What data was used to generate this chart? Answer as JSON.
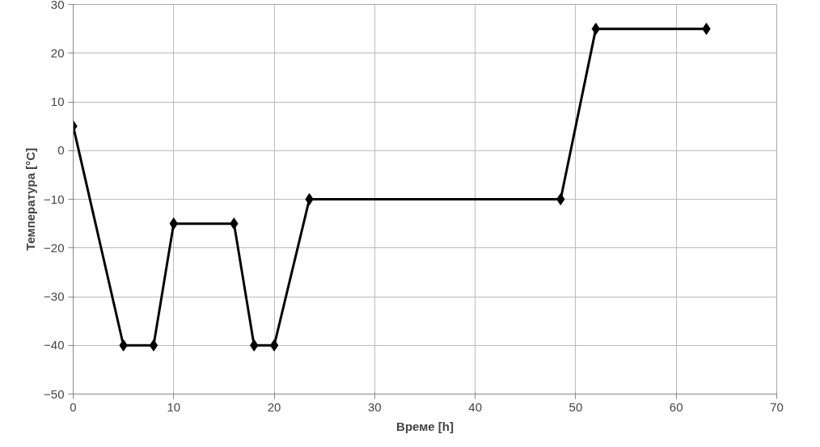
{
  "chart_data": {
    "type": "line",
    "xlabel": "Време [h]",
    "ylabel": "Температура [°C]",
    "x": [
      0,
      5,
      8,
      10,
      16,
      18,
      20,
      23.5,
      48.5,
      52,
      63
    ],
    "series": [
      {
        "color": "#000000",
        "values": [
          5,
          -40,
          -40,
          -15,
          -15,
          -40,
          -40,
          -10,
          -10,
          25,
          25
        ]
      }
    ],
    "xlim": [
      0,
      70
    ],
    "xticks": [
      0,
      10,
      20,
      30,
      40,
      50,
      60,
      70
    ],
    "ylim": [
      -50,
      30
    ],
    "yticks": [
      -50,
      -40,
      -30,
      -20,
      -10,
      0,
      10,
      20,
      30
    ],
    "grid": true,
    "marker": "diamond",
    "line_style": "solid"
  }
}
